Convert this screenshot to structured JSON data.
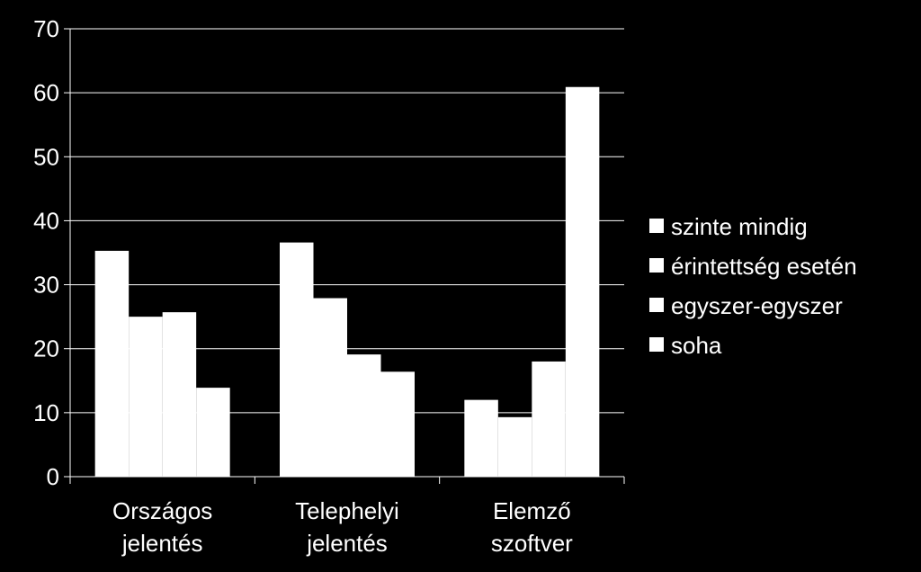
{
  "chart_data": {
    "type": "bar",
    "title": "",
    "xlabel": "",
    "ylabel": "",
    "ylim": [
      0,
      70
    ],
    "yticks": [
      0,
      10,
      20,
      30,
      40,
      50,
      60,
      70
    ],
    "grid": true,
    "legend_position": "right",
    "categories": [
      [
        "Országos",
        "jelentés"
      ],
      [
        "Telephelyi",
        "jelentés"
      ],
      [
        "Elemző",
        "szoftver"
      ]
    ],
    "series": [
      {
        "name": "szinte mindig",
        "values": [
          35.3,
          36.6,
          12.0
        ]
      },
      {
        "name": "érintettség esetén",
        "values": [
          25.0,
          27.9,
          9.3
        ]
      },
      {
        "name": "egyszer-egyszer",
        "values": [
          25.7,
          19.1,
          18.0
        ]
      },
      {
        "name": "soha",
        "values": [
          13.9,
          16.4,
          60.9
        ]
      }
    ],
    "colors": {
      "background": "#000000",
      "bar": "#ffffff",
      "grid": "#ffffff",
      "text": "#ffffff"
    }
  }
}
